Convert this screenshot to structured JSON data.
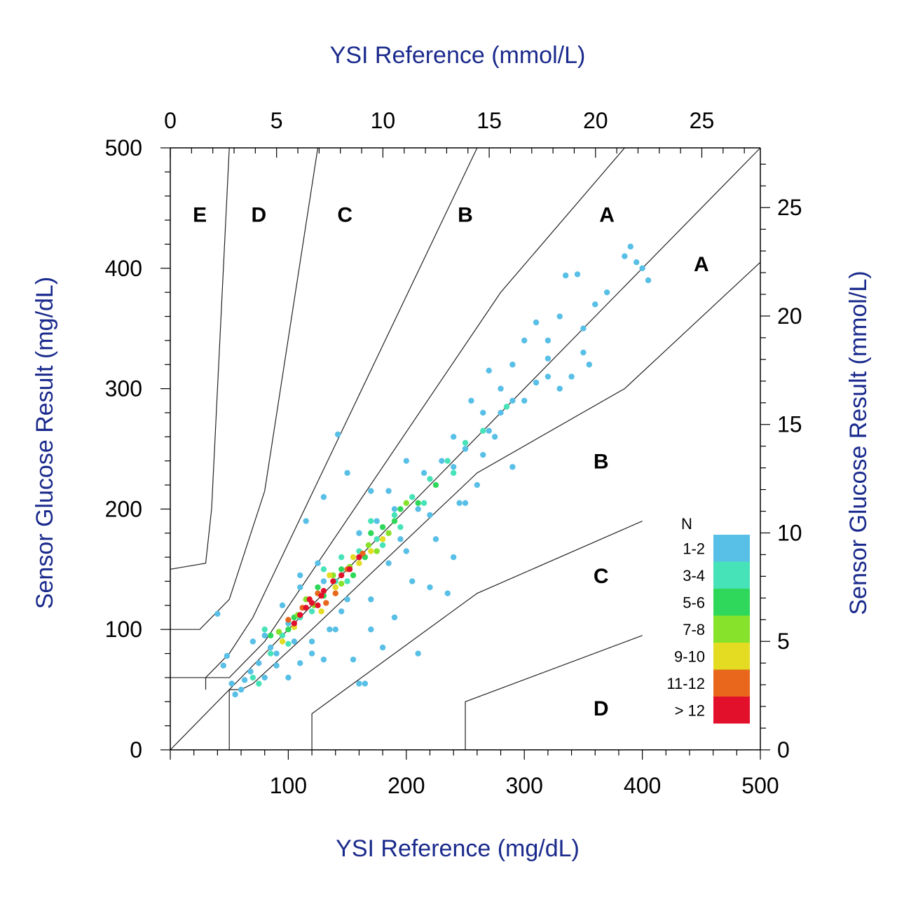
{
  "chart_data": {
    "type": "scatter",
    "title": "",
    "xlabel_bottom": "YSI Reference (mg/dL)",
    "xlabel_top": "YSI Reference (mmol/L)",
    "ylabel_left": "Sensor Glucose Result (mg/dL)",
    "ylabel_right": "Sensor Glucose Result (mmol/L)",
    "xlim": [
      0,
      500
    ],
    "ylim": [
      0,
      500
    ],
    "x_ticks_bottom": [
      "0",
      "100",
      "200",
      "300",
      "400",
      "500"
    ],
    "x_ticks_top": [
      "0",
      "5",
      "10",
      "15",
      "20",
      "25"
    ],
    "y_ticks_left": [
      "0",
      "100",
      "200",
      "300",
      "400",
      "500"
    ],
    "y_ticks_right": [
      "0",
      "5",
      "10",
      "15",
      "20",
      "25"
    ],
    "zone_labels": [
      {
        "text": "E",
        "x": 25,
        "y": 445
      },
      {
        "text": "D",
        "x": 75,
        "y": 445
      },
      {
        "text": "C",
        "x": 148,
        "y": 445
      },
      {
        "text": "B",
        "x": 250,
        "y": 445
      },
      {
        "text": "A",
        "x": 370,
        "y": 445
      },
      {
        "text": "A",
        "x": 450,
        "y": 404
      },
      {
        "text": "B",
        "x": 365,
        "y": 240
      },
      {
        "text": "C",
        "x": 365,
        "y": 145
      },
      {
        "text": "D",
        "x": 365,
        "y": 35
      }
    ],
    "zone_boundaries": [
      {
        "name": "identity",
        "points": [
          [
            0,
            0
          ],
          [
            500,
            500
          ]
        ]
      },
      {
        "name": "A-B upper",
        "points": [
          [
            30,
            50
          ],
          [
            30,
            60
          ],
          [
            50,
            60
          ],
          [
            70,
            80
          ],
          [
            80,
            90
          ],
          [
            280,
            380
          ],
          [
            385,
            500
          ]
        ]
      },
      {
        "name": "A-B lower",
        "points": [
          [
            50,
            30
          ],
          [
            50,
            50
          ],
          [
            60,
            50
          ],
          [
            70,
            55
          ],
          [
            120,
            100
          ],
          [
            260,
            230
          ],
          [
            385,
            300
          ],
          [
            500,
            405
          ]
        ]
      },
      {
        "name": "B-C upper",
        "points": [
          [
            0,
            60
          ],
          [
            30,
            60
          ],
          [
            50,
            80
          ],
          [
            70,
            110
          ],
          [
            260,
            500
          ]
        ]
      },
      {
        "name": "C-D upper",
        "points": [
          [
            0,
            100
          ],
          [
            25,
            100
          ],
          [
            50,
            125
          ],
          [
            80,
            215
          ],
          [
            125,
            500
          ]
        ]
      },
      {
        "name": "D-E upper",
        "points": [
          [
            0,
            150
          ],
          [
            30,
            155
          ],
          [
            35,
            200
          ],
          [
            50,
            500
          ]
        ]
      },
      {
        "name": "B-C lower",
        "points": [
          [
            120,
            0
          ],
          [
            120,
            30
          ],
          [
            260,
            130
          ],
          [
            400,
            190
          ]
        ]
      },
      {
        "name": "C-D lower",
        "points": [
          [
            250,
            0
          ],
          [
            250,
            40
          ],
          [
            400,
            95
          ]
        ]
      },
      {
        "name": "D-E lower",
        "points": [
          [
            50,
            0
          ],
          [
            50,
            30
          ]
        ]
      }
    ],
    "density_legend": {
      "title": "N",
      "bins": [
        {
          "label": "1-2",
          "color": "#58bfe6"
        },
        {
          "label": "3-4",
          "color": "#47e3b8"
        },
        {
          "label": "5-6",
          "color": "#2fd85a"
        },
        {
          "label": "7-8",
          "color": "#86e22a"
        },
        {
          "label": "9-10",
          "color": "#e3dc22"
        },
        {
          "label": "11-12",
          "color": "#e8671c"
        },
        {
          "label": "> 12",
          "color": "#e3102c"
        }
      ]
    },
    "points_summary": {
      "series": [
        {
          "bin": "1-2",
          "color": "#58bfe6",
          "points": [
            [
              40,
              113
            ],
            [
              45,
              70
            ],
            [
              48,
              78
            ],
            [
              52,
              55
            ],
            [
              55,
              46
            ],
            [
              60,
              50
            ],
            [
              63,
              58
            ],
            [
              68,
              65
            ],
            [
              70,
              90
            ],
            [
              75,
              72
            ],
            [
              80,
              95
            ],
            [
              90,
              70
            ],
            [
              95,
              120
            ],
            [
              100,
              60
            ],
            [
              110,
              72
            ],
            [
              120,
              90
            ],
            [
              130,
              75
            ],
            [
              145,
              115
            ],
            [
              155,
              75
            ],
            [
              160,
              55
            ],
            [
              165,
              55
            ],
            [
              170,
              100
            ],
            [
              180,
              85
            ],
            [
              190,
              110
            ],
            [
              200,
              240
            ],
            [
              210,
              80
            ],
            [
              220,
              135
            ],
            [
              235,
              130
            ],
            [
              240,
              260
            ],
            [
              250,
              205
            ],
            [
              255,
              290
            ],
            [
              265,
              280
            ],
            [
              270,
              315
            ],
            [
              280,
              300
            ],
            [
              290,
              320
            ],
            [
              300,
              340
            ],
            [
              310,
              355
            ],
            [
              320,
              340
            ],
            [
              330,
              360
            ],
            [
              335,
              394
            ],
            [
              345,
              395
            ],
            [
              350,
              330
            ],
            [
              355,
              320
            ],
            [
              360,
              370
            ],
            [
              370,
              380
            ],
            [
              385,
              410
            ],
            [
              390,
              418
            ],
            [
              395,
              405
            ],
            [
              400,
              400
            ],
            [
              405,
              390
            ],
            [
              142,
              262
            ],
            [
              115,
              190
            ],
            [
              260,
              220
            ],
            [
              240,
              160
            ],
            [
              210,
              200
            ],
            [
              275,
              260
            ],
            [
              290,
              235
            ],
            [
              310,
              305
            ],
            [
              320,
              310
            ],
            [
              330,
              300
            ],
            [
              340,
              310
            ],
            [
              130,
              210
            ],
            [
              150,
              230
            ],
            [
              170,
              215
            ],
            [
              160,
              160
            ],
            [
              185,
              155
            ],
            [
              200,
              165
            ],
            [
              225,
              175
            ],
            [
              205,
              140
            ],
            [
              170,
              125
            ],
            [
              140,
              100
            ],
            [
              120,
              80
            ],
            [
              90,
              80
            ],
            [
              80,
              60
            ],
            [
              110,
              135
            ],
            [
              125,
              155
            ],
            [
              175,
              190
            ],
            [
              215,
              230
            ],
            [
              230,
              240
            ],
            [
              250,
              250
            ],
            [
              265,
              245
            ],
            [
              245,
              205
            ],
            [
              220,
              195
            ],
            [
              195,
              175
            ],
            [
              150,
              125
            ],
            [
              135,
              100
            ],
            [
              105,
              90
            ],
            [
              85,
              85
            ],
            [
              185,
              215
            ],
            [
              280,
              280
            ],
            [
              300,
              290
            ],
            [
              110,
              145
            ],
            [
              100,
              105
            ],
            [
              130,
              140
            ],
            [
              160,
              180
            ],
            [
              190,
              200
            ],
            [
              240,
              235
            ],
            [
              270,
              265
            ],
            [
              290,
              290
            ],
            [
              320,
              325
            ],
            [
              350,
              350
            ]
          ]
        },
        {
          "bin": "3-4",
          "color": "#47e3b8",
          "points": [
            [
              70,
              60
            ],
            [
              85,
              80
            ],
            [
              95,
              95
            ],
            [
              110,
              110
            ],
            [
              125,
              130
            ],
            [
              140,
              140
            ],
            [
              160,
              165
            ],
            [
              175,
              175
            ],
            [
              190,
              195
            ],
            [
              205,
              210
            ],
            [
              220,
              225
            ],
            [
              235,
              240
            ],
            [
              250,
              255
            ],
            [
              265,
              265
            ],
            [
              285,
              285
            ],
            [
              75,
              55
            ],
            [
              100,
              88
            ],
            [
              130,
              150
            ],
            [
              150,
              140
            ],
            [
              170,
              190
            ],
            [
              195,
              185
            ],
            [
              215,
              205
            ],
            [
              240,
              230
            ],
            [
              80,
              100
            ],
            [
              120,
              115
            ],
            [
              145,
              160
            ],
            [
              180,
              170
            ]
          ]
        },
        {
          "bin": "5-6",
          "color": "#2fd85a",
          "points": [
            [
              85,
              95
            ],
            [
              100,
              100
            ],
            [
              115,
              118
            ],
            [
              130,
              128
            ],
            [
              145,
              150
            ],
            [
              165,
              160
            ],
            [
              180,
              185
            ],
            [
              195,
              200
            ],
            [
              210,
              205
            ],
            [
              225,
              220
            ],
            [
              105,
              110
            ],
            [
              125,
              135
            ],
            [
              155,
              145
            ],
            [
              170,
              180
            ],
            [
              190,
              190
            ]
          ]
        },
        {
          "bin": "7-8",
          "color": "#86e22a",
          "points": [
            [
              92,
              98
            ],
            [
              108,
              112
            ],
            [
              122,
              120
            ],
            [
              138,
              145
            ],
            [
              152,
              152
            ],
            [
              168,
              170
            ],
            [
              185,
              180
            ],
            [
              200,
              205
            ],
            [
              115,
              125
            ],
            [
              145,
              138
            ],
            [
              175,
              165
            ]
          ]
        },
        {
          "bin": "9-10",
          "color": "#e3dc22",
          "points": [
            [
              95,
              90
            ],
            [
              105,
              102
            ],
            [
              118,
              125
            ],
            [
              128,
              115
            ],
            [
              140,
              135
            ],
            [
              155,
              160
            ],
            [
              170,
              165
            ],
            [
              180,
              175
            ],
            [
              135,
              145
            ],
            [
              160,
              155
            ]
          ]
        },
        {
          "bin": "11-12",
          "color": "#e8671c",
          "points": [
            [
              100,
              108
            ],
            [
              112,
              118
            ],
            [
              125,
              130
            ],
            [
              140,
              130
            ],
            [
              150,
              150
            ],
            [
              163,
              163
            ],
            [
              132,
              122
            ]
          ]
        },
        {
          "bin": "> 12",
          "color": "#e3102c",
          "points": [
            [
              105,
              105
            ],
            [
              110,
              112
            ],
            [
              115,
              118
            ],
            [
              120,
              122
            ],
            [
              125,
              120
            ],
            [
              130,
              132
            ],
            [
              138,
              140
            ],
            [
              145,
              145
            ],
            [
              152,
              150
            ],
            [
              160,
              160
            ],
            [
              118,
              125
            ],
            [
              128,
              128
            ]
          ]
        }
      ]
    }
  }
}
